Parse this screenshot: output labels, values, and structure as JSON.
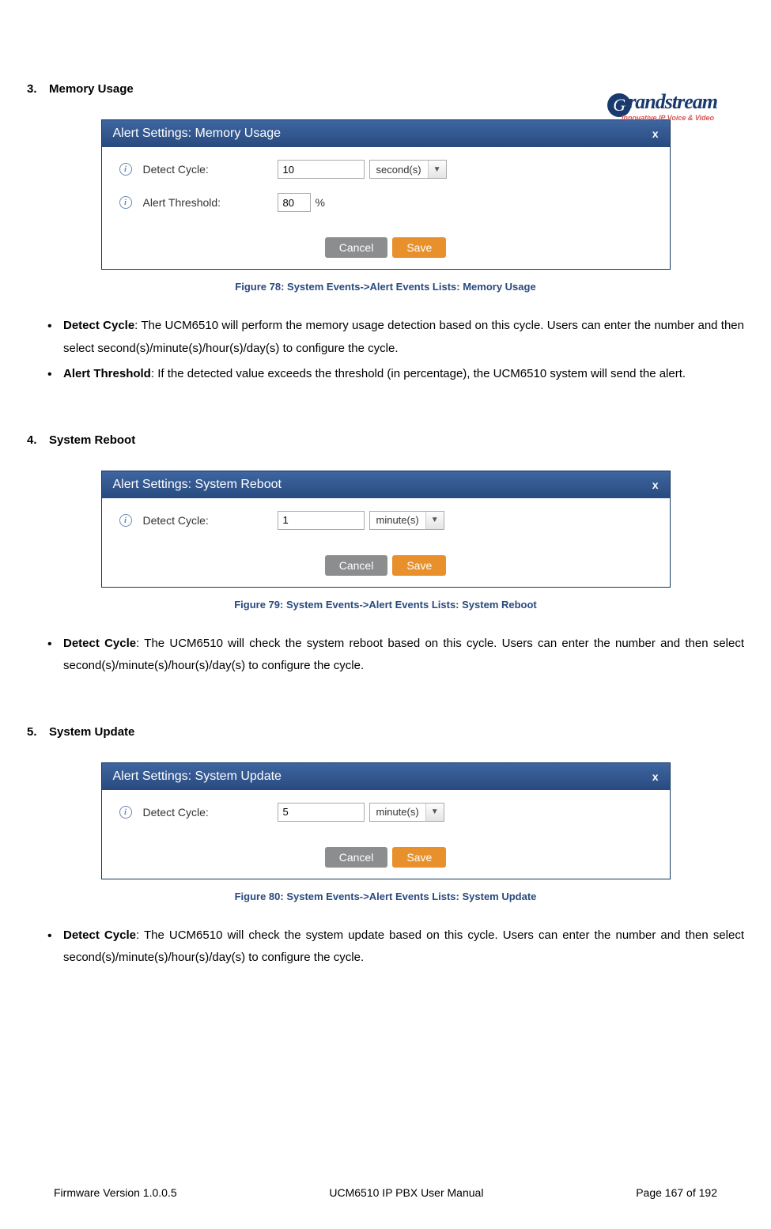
{
  "logo": {
    "brand": "randstream",
    "initial": "G",
    "tagline": "Innovative IP Voice & Video"
  },
  "sections": [
    {
      "num": "3.",
      "title": "Memory Usage",
      "dialog": {
        "title": "Alert Settings: Memory Usage",
        "close": "x",
        "rows": [
          {
            "label": "Detect Cycle:",
            "value": "10",
            "unit_type": "select",
            "unit": "second(s)",
            "input_width": "w110"
          },
          {
            "label": "Alert Threshold:",
            "value": "80",
            "unit_type": "text",
            "unit": "%",
            "input_width": "w42"
          }
        ],
        "cancel": "Cancel",
        "save": "Save"
      },
      "caption": "Figure 78: System Events->Alert Events Lists: Memory Usage",
      "bullets": [
        {
          "term": "Detect Cycle",
          "rest": ": The UCM6510 will perform the memory usage detection based on this cycle. Users can enter the number and then select second(s)/minute(s)/hour(s)/day(s) to configure the cycle."
        },
        {
          "term": "Alert Threshold",
          "rest": ": If the detected value exceeds the threshold (in percentage), the UCM6510 system will send the alert."
        }
      ]
    },
    {
      "num": "4.",
      "title": "System Reboot",
      "dialog": {
        "title": "Alert Settings: System Reboot",
        "close": "x",
        "rows": [
          {
            "label": "Detect Cycle:",
            "value": "1",
            "unit_type": "select",
            "unit": "minute(s)",
            "input_width": "w110"
          }
        ],
        "cancel": "Cancel",
        "save": "Save"
      },
      "caption": "Figure 79: System Events->Alert Events Lists: System Reboot",
      "bullets": [
        {
          "term": "Detect Cycle",
          "rest": ": The UCM6510 will check the system reboot based on this cycle. Users can enter the number and then select second(s)/minute(s)/hour(s)/day(s) to configure the cycle."
        }
      ]
    },
    {
      "num": "5.",
      "title": "System Update",
      "dialog": {
        "title": "Alert Settings: System Update",
        "close": "x",
        "rows": [
          {
            "label": "Detect Cycle:",
            "value": "5",
            "unit_type": "select",
            "unit": "minute(s)",
            "input_width": "w110"
          }
        ],
        "cancel": "Cancel",
        "save": "Save"
      },
      "caption": "Figure 80: System Events->Alert Events Lists: System Update",
      "bullets": [
        {
          "term": "Detect Cycle",
          "rest": ": The UCM6510 will check the system update based on this cycle. Users can enter the number and then select second(s)/minute(s)/hour(s)/day(s) to configure the cycle."
        }
      ]
    }
  ],
  "footer": {
    "left": "Firmware Version 1.0.0.5",
    "center": "UCM6510 IP PBX User Manual",
    "right": "Page 167 of 192"
  },
  "colors": {
    "header_grad_top": "#3f66a1",
    "header_grad_bottom": "#284a7e",
    "caption_color": "#284a7e",
    "save_btn": "#e8912c",
    "cancel_btn": "#8b8d8e",
    "border": "#14355f"
  }
}
